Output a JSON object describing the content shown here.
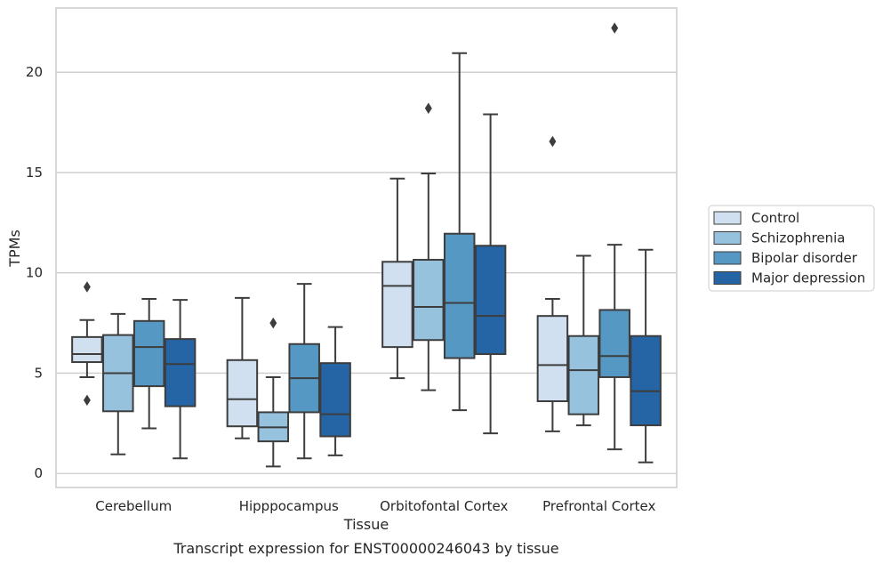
{
  "caption": "Transcript expression for ENST00000246043 by tissue",
  "chart_data": {
    "type": "box",
    "xlabel": "Tissue",
    "ylabel": "TPMs",
    "ylim": [
      -0.7,
      23.2
    ],
    "yticks": [
      0,
      5,
      10,
      15,
      20
    ],
    "grid": "horizontal",
    "legend_position": "right",
    "categories": [
      "Cerebellum",
      "Hipppocampus",
      "Orbitofontal Cortex",
      "Prefrontal Cortex"
    ],
    "series": [
      {
        "name": "Control",
        "color": "#d0e0f0",
        "boxes": [
          {
            "whislo": 4.8,
            "q1": 5.55,
            "med": 5.95,
            "q3": 6.8,
            "whishi": 7.65,
            "fliers": [
              9.3,
              3.65
            ]
          },
          {
            "whislo": 1.75,
            "q1": 2.35,
            "med": 3.7,
            "q3": 5.65,
            "whishi": 8.75,
            "fliers": []
          },
          {
            "whislo": 4.75,
            "q1": 6.3,
            "med": 9.35,
            "q3": 10.55,
            "whishi": 14.7,
            "fliers": []
          },
          {
            "whislo": 2.1,
            "q1": 3.6,
            "med": 5.4,
            "q3": 7.85,
            "whishi": 8.7,
            "fliers": [
              16.55
            ]
          }
        ]
      },
      {
        "name": "Schizophrenia",
        "color": "#97c2de",
        "boxes": [
          {
            "whislo": 0.95,
            "q1": 3.1,
            "med": 5.0,
            "q3": 6.9,
            "whishi": 7.95,
            "fliers": []
          },
          {
            "whislo": 0.35,
            "q1": 1.6,
            "med": 2.3,
            "q3": 3.05,
            "whishi": 4.8,
            "fliers": [
              7.5
            ]
          },
          {
            "whislo": 4.15,
            "q1": 6.65,
            "med": 8.3,
            "q3": 10.65,
            "whishi": 14.95,
            "fliers": [
              18.2
            ]
          },
          {
            "whislo": 2.4,
            "q1": 2.95,
            "med": 5.15,
            "q3": 6.85,
            "whishi": 10.85,
            "fliers": []
          }
        ]
      },
      {
        "name": "Bipolar disorder",
        "color": "#5598c4",
        "boxes": [
          {
            "whislo": 2.25,
            "q1": 4.35,
            "med": 6.3,
            "q3": 7.6,
            "whishi": 8.7,
            "fliers": []
          },
          {
            "whislo": 0.75,
            "q1": 3.05,
            "med": 4.75,
            "q3": 6.45,
            "whishi": 9.45,
            "fliers": []
          },
          {
            "whislo": 3.15,
            "q1": 5.75,
            "med": 8.5,
            "q3": 11.95,
            "whishi": 20.95,
            "fliers": []
          },
          {
            "whislo": 1.2,
            "q1": 4.8,
            "med": 5.85,
            "q3": 8.15,
            "whishi": 11.4,
            "fliers": [
              22.2
            ]
          }
        ]
      },
      {
        "name": "Major depression",
        "color": "#2565a6",
        "boxes": [
          {
            "whislo": 0.75,
            "q1": 3.35,
            "med": 5.45,
            "q3": 6.7,
            "whishi": 8.65,
            "fliers": []
          },
          {
            "whislo": 0.9,
            "q1": 1.85,
            "med": 2.95,
            "q3": 5.5,
            "whishi": 7.3,
            "fliers": []
          },
          {
            "whislo": 2.0,
            "q1": 5.95,
            "med": 7.85,
            "q3": 11.35,
            "whishi": 17.9,
            "fliers": []
          },
          {
            "whislo": 0.55,
            "q1": 2.4,
            "med": 4.1,
            "q3": 6.85,
            "whishi": 11.15,
            "fliers": []
          }
        ]
      }
    ]
  }
}
